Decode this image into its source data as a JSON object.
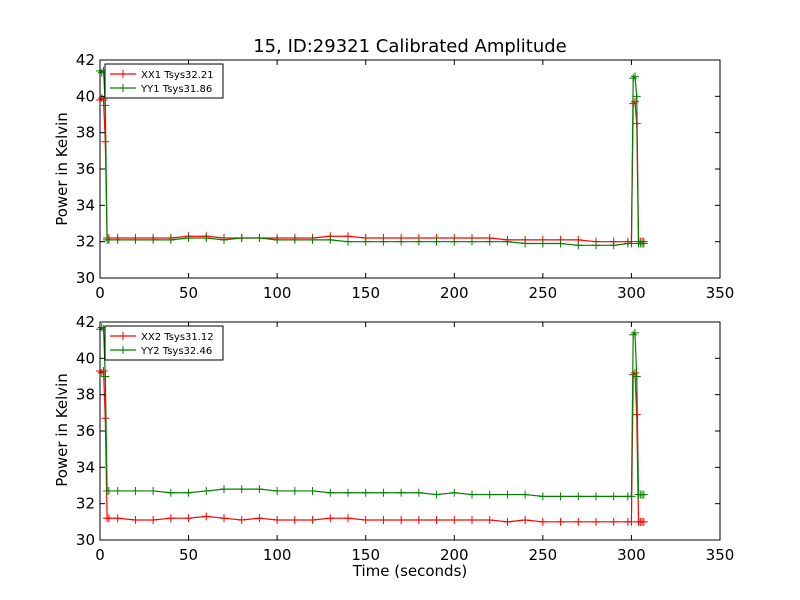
{
  "colors": {
    "xx": "#ff0000",
    "yy": "#008000",
    "axis": "#000000"
  },
  "chart_data": [
    {
      "type": "line",
      "title": "15, ID:29321 Calibrated Amplitude",
      "xlabel": "",
      "ylabel": "Power in Kelvin",
      "xlim": [
        0,
        350
      ],
      "ylim": [
        30,
        42
      ],
      "xticks": [
        0,
        50,
        100,
        150,
        200,
        250,
        300,
        350
      ],
      "yticks": [
        30,
        32,
        34,
        36,
        38,
        40,
        42
      ],
      "legend_position": "top-left",
      "series": [
        {
          "name": "XX1 Tsys32.21",
          "color": "#ff0000",
          "x": [
            0,
            1,
            2,
            3,
            4,
            5,
            10,
            20,
            30,
            40,
            50,
            60,
            70,
            80,
            90,
            100,
            110,
            120,
            130,
            140,
            150,
            160,
            170,
            180,
            190,
            200,
            210,
            220,
            230,
            240,
            250,
            260,
            270,
            280,
            290,
            298,
            300,
            301,
            302,
            303,
            304,
            305,
            306,
            307
          ],
          "y": [
            39.8,
            39.9,
            39.8,
            37.5,
            32.2,
            32.2,
            32.2,
            32.2,
            32.2,
            32.2,
            32.3,
            32.3,
            32.2,
            32.2,
            32.2,
            32.2,
            32.2,
            32.2,
            32.3,
            32.3,
            32.2,
            32.2,
            32.2,
            32.2,
            32.2,
            32.2,
            32.2,
            32.2,
            32.1,
            32.1,
            32.1,
            32.1,
            32.1,
            32.0,
            32.0,
            32.0,
            32.0,
            39.6,
            39.7,
            38.5,
            32.0,
            32.0,
            32.0,
            32.0
          ]
        },
        {
          "name": "YY1 Tsys31.86",
          "color": "#008000",
          "x": [
            0,
            1,
            2,
            3,
            4,
            5,
            10,
            20,
            30,
            40,
            50,
            60,
            70,
            80,
            90,
            100,
            110,
            120,
            130,
            140,
            150,
            160,
            170,
            180,
            190,
            200,
            210,
            220,
            230,
            240,
            250,
            260,
            270,
            280,
            290,
            298,
            300,
            301,
            302,
            303,
            304,
            305,
            306,
            307
          ],
          "y": [
            41.4,
            41.3,
            41.4,
            39.5,
            32.1,
            32.1,
            32.1,
            32.1,
            32.1,
            32.1,
            32.2,
            32.2,
            32.1,
            32.2,
            32.2,
            32.1,
            32.1,
            32.1,
            32.1,
            32.0,
            32.0,
            32.0,
            32.0,
            32.0,
            32.0,
            32.0,
            32.0,
            32.0,
            32.0,
            31.9,
            31.9,
            31.9,
            31.8,
            31.8,
            31.8,
            31.9,
            31.9,
            41.0,
            41.1,
            40.0,
            31.9,
            31.9,
            31.9,
            31.9
          ]
        }
      ]
    },
    {
      "type": "line",
      "title": "",
      "xlabel": "Time (seconds)",
      "ylabel": "Power in Kelvin",
      "xlim": [
        0,
        350
      ],
      "ylim": [
        30,
        42
      ],
      "xticks": [
        0,
        50,
        100,
        150,
        200,
        250,
        300,
        350
      ],
      "yticks": [
        30,
        32,
        34,
        36,
        38,
        40,
        42
      ],
      "legend_position": "top-left",
      "series": [
        {
          "name": "XX2 Tsys31.12",
          "color": "#ff0000",
          "x": [
            0,
            1,
            2,
            3,
            4,
            5,
            10,
            20,
            30,
            40,
            50,
            60,
            70,
            80,
            90,
            100,
            110,
            120,
            130,
            140,
            150,
            160,
            170,
            180,
            190,
            200,
            210,
            220,
            230,
            240,
            250,
            260,
            270,
            280,
            290,
            298,
            300,
            301,
            302,
            303,
            304,
            305,
            306,
            307
          ],
          "y": [
            39.3,
            39.2,
            39.3,
            36.7,
            31.2,
            31.2,
            31.2,
            31.1,
            31.1,
            31.2,
            31.2,
            31.3,
            31.2,
            31.1,
            31.2,
            31.1,
            31.1,
            31.1,
            31.2,
            31.2,
            31.1,
            31.1,
            31.1,
            31.1,
            31.1,
            31.1,
            31.1,
            31.1,
            31.0,
            31.1,
            31.0,
            31.0,
            31.0,
            31.0,
            31.0,
            31.0,
            31.0,
            39.1,
            39.2,
            36.9,
            31.0,
            31.0,
            31.0,
            31.0
          ]
        },
        {
          "name": "YY2 Tsys32.46",
          "color": "#008000",
          "x": [
            0,
            1,
            2,
            3,
            4,
            5,
            10,
            20,
            30,
            40,
            50,
            60,
            70,
            80,
            90,
            100,
            110,
            120,
            130,
            140,
            150,
            160,
            170,
            180,
            190,
            200,
            210,
            220,
            230,
            240,
            250,
            260,
            270,
            280,
            290,
            298,
            300,
            301,
            302,
            303,
            304,
            305,
            306,
            307
          ],
          "y": [
            41.6,
            41.7,
            41.6,
            39.0,
            32.7,
            32.7,
            32.7,
            32.7,
            32.7,
            32.6,
            32.6,
            32.7,
            32.8,
            32.8,
            32.8,
            32.7,
            32.7,
            32.7,
            32.6,
            32.6,
            32.6,
            32.6,
            32.6,
            32.6,
            32.5,
            32.6,
            32.5,
            32.5,
            32.5,
            32.5,
            32.4,
            32.4,
            32.4,
            32.4,
            32.4,
            32.4,
            32.4,
            41.3,
            41.4,
            39.0,
            32.5,
            32.5,
            32.5,
            32.5
          ]
        }
      ]
    }
  ]
}
